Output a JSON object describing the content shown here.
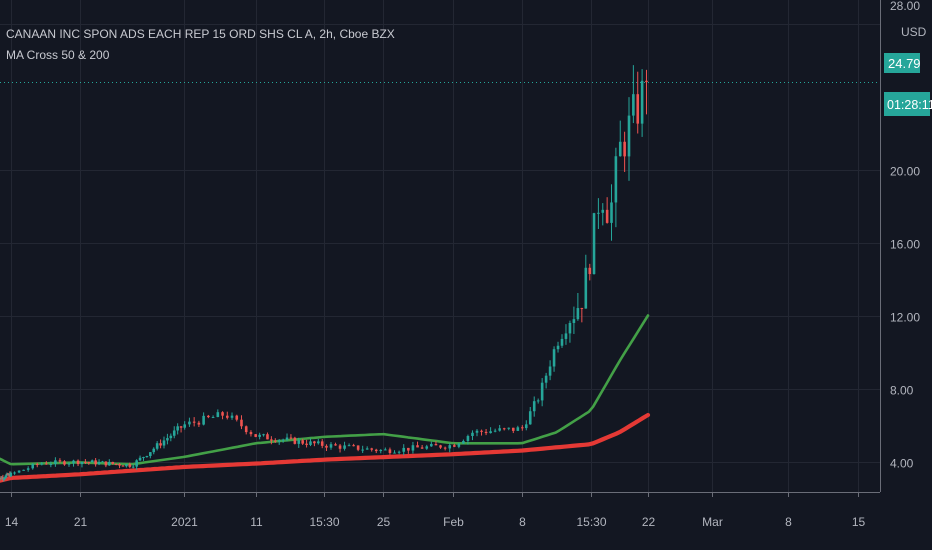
{
  "header": {
    "symbol_line": "CANAAN INC SPON ADS EACH REP 15 ORD SHS CL A, 2h, Cboe BZX",
    "indicator_line": "MA Cross 50 & 200"
  },
  "price_axis": {
    "currency": "USD",
    "top_partial_label": "28.00",
    "last_price_label": "24.79",
    "countdown_label": "01:28:11"
  },
  "colors": {
    "background": "#131722",
    "grid": "#232733",
    "axis_line": "#6a6d78",
    "text": "#b2b5be",
    "up_candle": "#26a69a",
    "down_candle": "#ef5350",
    "ma_fast": "#43a047",
    "ma_slow": "#e53935",
    "price_badge": "#26a69a"
  },
  "chart_data": {
    "type": "candlestick",
    "y_axis": {
      "ticks": [
        4,
        8,
        12,
        16,
        20
      ],
      "tick_labels": [
        "4.00",
        "8.00",
        "12.00",
        "16.00",
        "20.00"
      ],
      "range": [
        2.2,
        28.5
      ]
    },
    "x_axis": {
      "labels": [
        "14",
        "21",
        "2021",
        "11",
        "15:30",
        "25",
        "Feb",
        "8",
        "15:30",
        "22",
        "Mar",
        "8",
        "15"
      ],
      "label_dates": [
        "2020-12-14",
        "2020-12-21",
        "2021-01-04",
        "2021-01-11",
        "2021-01-19",
        "2021-01-25",
        "2021-02-01",
        "2021-02-08",
        "2021-02-16",
        "2021-02-22",
        "2021-03-01",
        "2021-03-08",
        "2021-03-15"
      ]
    },
    "last_price": 24.79,
    "series": [
      {
        "name": "MA Cross 50",
        "points": [
          [
            "2020-12-07",
            4.25
          ],
          [
            "2020-12-14",
            3.85
          ],
          [
            "2020-12-21",
            3.95
          ],
          [
            "2020-12-28",
            3.85
          ],
          [
            "2021-01-04",
            4.25
          ],
          [
            "2021-01-11",
            5.0
          ],
          [
            "2021-01-19",
            5.35
          ],
          [
            "2021-01-25",
            5.5
          ],
          [
            "2021-02-01",
            5.0
          ],
          [
            "2021-02-08",
            5.0
          ],
          [
            "2021-02-12",
            5.6
          ],
          [
            "2021-02-16",
            6.8
          ],
          [
            "2021-02-19",
            9.5
          ],
          [
            "2021-02-22",
            12.0
          ]
        ]
      },
      {
        "name": "MA Cross 200",
        "points": [
          [
            "2020-12-07",
            2.9
          ],
          [
            "2020-12-21",
            3.3
          ],
          [
            "2021-01-04",
            3.7
          ],
          [
            "2021-01-19",
            4.1
          ],
          [
            "2021-02-01",
            4.4
          ],
          [
            "2021-02-08",
            4.6
          ],
          [
            "2021-02-16",
            4.95
          ],
          [
            "2021-02-19",
            5.6
          ],
          [
            "2021-02-22",
            6.55
          ]
        ]
      }
    ],
    "candle_anchors": [
      [
        "2020-12-07",
        3.0
      ],
      [
        "2020-12-14",
        3.3
      ],
      [
        "2020-12-17",
        3.9
      ],
      [
        "2020-12-21",
        4.0
      ],
      [
        "2020-12-28",
        3.8
      ],
      [
        "2021-01-04",
        6.0
      ],
      [
        "2021-01-08",
        6.6
      ],
      [
        "2021-01-11",
        5.4
      ],
      [
        "2021-01-19",
        4.9
      ],
      [
        "2021-01-25",
        4.6
      ],
      [
        "2021-02-01",
        4.9
      ],
      [
        "2021-02-03",
        5.6
      ],
      [
        "2021-02-08",
        5.8
      ],
      [
        "2021-02-10",
        7.6
      ],
      [
        "2021-02-12",
        10.5
      ],
      [
        "2021-02-15",
        13.0
      ],
      [
        "2021-02-16",
        15.5
      ],
      [
        "2021-02-17",
        19.0
      ],
      [
        "2021-02-18",
        17.5
      ],
      [
        "2021-02-19",
        21.0
      ],
      [
        "2021-02-22",
        24.79
      ]
    ]
  }
}
